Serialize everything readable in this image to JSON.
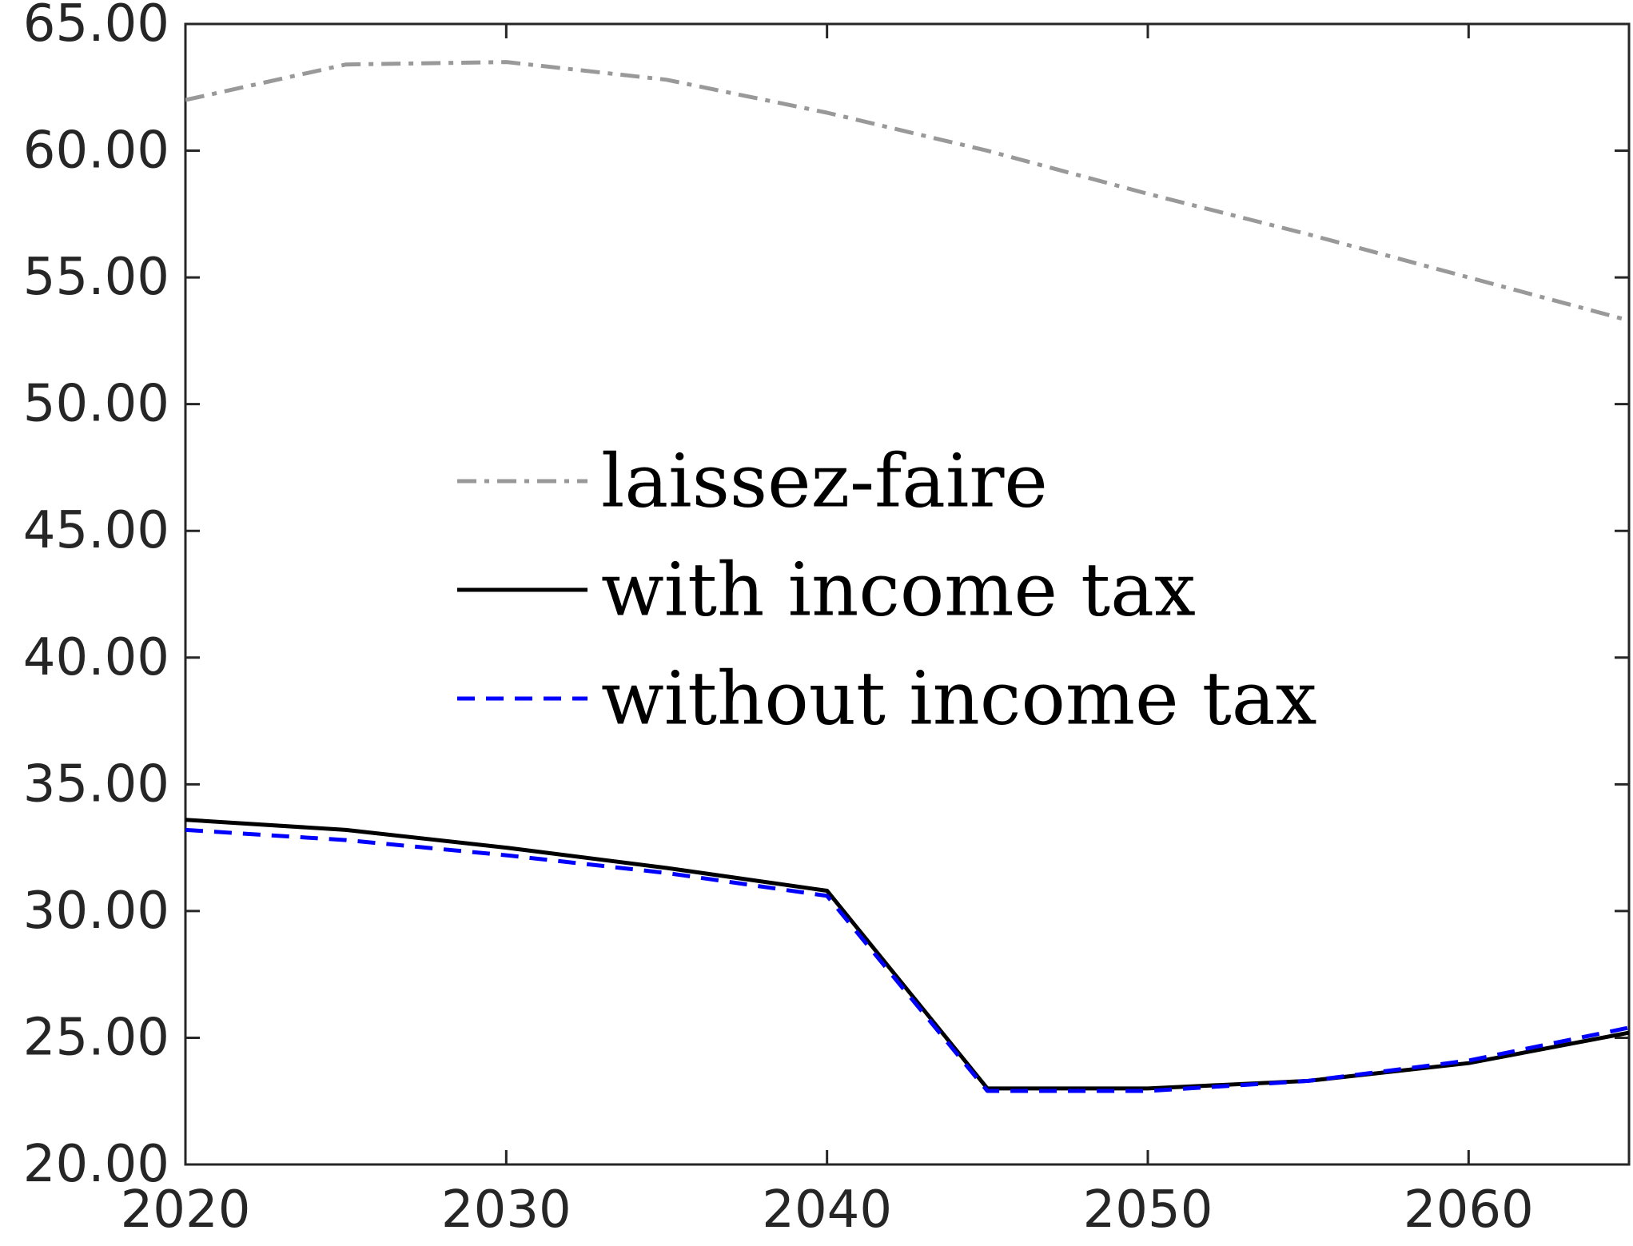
{
  "chart_data": {
    "type": "line",
    "title": "",
    "xlabel": "",
    "ylabel": "",
    "xlim": [
      2020,
      2065
    ],
    "ylim": [
      20,
      65
    ],
    "x_ticks": [
      2020,
      2030,
      2040,
      2050,
      2060
    ],
    "x_tick_labels": [
      "2020",
      "2030",
      "2040",
      "2050",
      "2060"
    ],
    "y_ticks": [
      20,
      25,
      30,
      35,
      40,
      45,
      50,
      55,
      60,
      65
    ],
    "y_tick_labels": [
      "20.00",
      "25.00",
      "30.00",
      "35.00",
      "40.00",
      "45.00",
      "50.00",
      "55.00",
      "60.00",
      "65.00"
    ],
    "grid": false,
    "legend_position": "center",
    "x": [
      2020,
      2025,
      2030,
      2035,
      2040,
      2045,
      2050,
      2055,
      2060,
      2065
    ],
    "series": [
      {
        "name": "laissez-faire",
        "values": [
          62.0,
          63.4,
          63.5,
          62.8,
          61.5,
          60.0,
          58.3,
          56.7,
          55.0,
          53.3
        ],
        "color": "#999999",
        "style": "dashdot"
      },
      {
        "name": "with income tax",
        "values": [
          33.6,
          33.2,
          32.5,
          31.7,
          30.8,
          23.0,
          23.0,
          23.3,
          24.0,
          25.2
        ],
        "color": "#000000",
        "style": "solid"
      },
      {
        "name": "without income tax",
        "values": [
          33.2,
          32.8,
          32.2,
          31.5,
          30.6,
          22.9,
          22.9,
          23.3,
          24.1,
          25.4
        ],
        "color": "#0000ff",
        "style": "dashed"
      }
    ]
  }
}
